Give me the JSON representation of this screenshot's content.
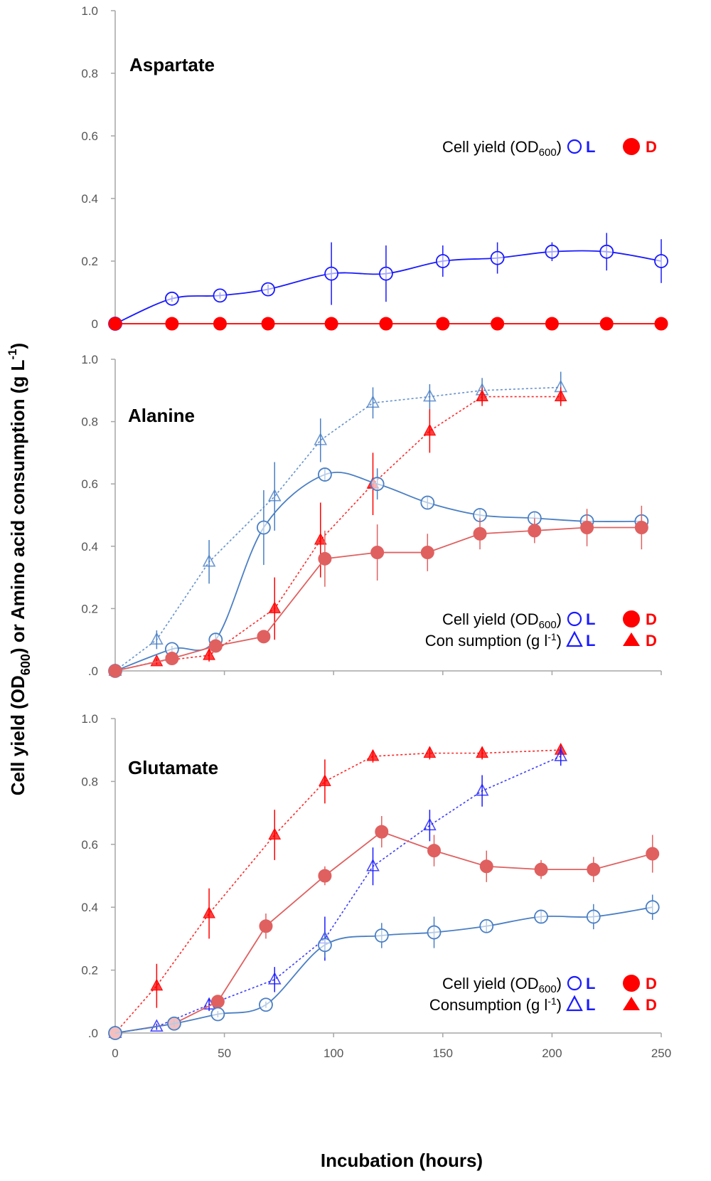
{
  "figure": {
    "ylabel_main": "Cell yield (OD",
    "ylabel_sub": "600",
    "ylabel_rest": ")  or  Amino acid consumption (g L",
    "ylabel_sup": "-1",
    "ylabel_end": ")",
    "xlabel": "Incubation (hours)",
    "xlim": [
      0,
      250
    ],
    "xticks": [
      "0",
      "50",
      "100",
      "150",
      "200",
      "250"
    ],
    "colors": {
      "L": "#1a1aff",
      "L_soft": "#4a7fc4",
      "D": "#ff0000",
      "D_soft": "#e06060"
    }
  },
  "chart_data": [
    {
      "type": "line",
      "title": "Aspartate",
      "ylim": [
        0,
        1.0
      ],
      "yticks": [
        "0",
        "0.2",
        "0.4",
        "0.6",
        "0.8",
        "1.0"
      ],
      "legend": {
        "position": "right",
        "rows": [
          {
            "text": "Cell yield (OD",
            "sub": "600",
            "end": ")",
            "key_L": "L",
            "key_D": "D",
            "marker": "circle"
          }
        ]
      },
      "series": [
        {
          "name": "Cell yield L",
          "marker": "circle-open",
          "color": "L",
          "smooth": true,
          "dash": false,
          "x": [
            0,
            26,
            48,
            70,
            99,
            124,
            150,
            175,
            200,
            225,
            250
          ],
          "y": [
            0.0,
            0.08,
            0.09,
            0.11,
            0.16,
            0.16,
            0.2,
            0.21,
            0.23,
            0.23,
            0.2
          ],
          "err": [
            0,
            0.01,
            0.01,
            0.015,
            0.1,
            0.09,
            0.05,
            0.05,
            0.03,
            0.06,
            0.07
          ]
        },
        {
          "name": "Cell yield D",
          "marker": "circle-filled",
          "color": "D",
          "smooth": false,
          "dash": false,
          "x": [
            0,
            26,
            48,
            70,
            99,
            124,
            150,
            175,
            200,
            225,
            250
          ],
          "y": [
            0,
            0,
            0,
            0,
            0,
            0,
            0,
            0,
            0,
            0,
            0
          ],
          "err": [
            0,
            0,
            0,
            0,
            0,
            0,
            0,
            0,
            0,
            0,
            0
          ]
        }
      ]
    },
    {
      "type": "line",
      "title": "Alanine",
      "ylim": [
        0,
        1.0
      ],
      "yticks": [
        ".0",
        "0.2",
        "0.4",
        "0.6",
        "0.8",
        "1.0"
      ],
      "legend": {
        "position": "bottom-right",
        "rows": [
          {
            "text": "Cell yield (OD",
            "sub": "600",
            "end": ")",
            "key_L": "L",
            "key_D": "D",
            "marker": "circle"
          },
          {
            "text": "Con sumption (g l",
            "sup": "-1",
            "end": ")",
            "key_L": "L",
            "key_D": "D",
            "marker": "triangle"
          }
        ]
      },
      "series": [
        {
          "name": "Consumption L",
          "marker": "triangle-open",
          "color": "L_soft",
          "smooth": false,
          "dash": true,
          "x": [
            0,
            19,
            43,
            73,
            94,
            118,
            144,
            168,
            204
          ],
          "y": [
            0.0,
            0.1,
            0.35,
            0.56,
            0.74,
            0.86,
            0.88,
            0.9,
            0.91
          ],
          "err": [
            0,
            0.03,
            0.07,
            0.11,
            0.07,
            0.05,
            0.04,
            0.04,
            0.05
          ]
        },
        {
          "name": "Consumption D",
          "marker": "triangle-filled",
          "color": "D",
          "smooth": false,
          "dash": true,
          "x": [
            0,
            19,
            43,
            73,
            94,
            118,
            144,
            168,
            204
          ],
          "y": [
            0.0,
            0.03,
            0.05,
            0.2,
            0.42,
            0.6,
            0.77,
            0.88,
            0.88
          ],
          "err": [
            0,
            0.01,
            0.02,
            0.1,
            0.12,
            0.1,
            0.07,
            0.03,
            0.03
          ]
        },
        {
          "name": "Cell yield L",
          "marker": "circle-open",
          "color": "L_soft",
          "smooth": true,
          "dash": false,
          "x": [
            0,
            26,
            46,
            68,
            96,
            120,
            143,
            167,
            192,
            216,
            241
          ],
          "y": [
            0.0,
            0.07,
            0.1,
            0.46,
            0.63,
            0.6,
            0.54,
            0.5,
            0.49,
            0.48,
            0.48
          ],
          "err": [
            0,
            0.01,
            0.02,
            0.12,
            0.02,
            0.05,
            0.02,
            0.02,
            0.02,
            0.02,
            0.02
          ]
        },
        {
          "name": "Cell yield D",
          "marker": "circle-filled",
          "color": "D_soft",
          "smooth": false,
          "dash": false,
          "x": [
            0,
            26,
            46,
            68,
            96,
            120,
            143,
            167,
            192,
            216,
            241
          ],
          "y": [
            0.0,
            0.04,
            0.08,
            0.11,
            0.36,
            0.38,
            0.38,
            0.44,
            0.45,
            0.46,
            0.46
          ],
          "err": [
            0,
            0.005,
            0.01,
            0.01,
            0.09,
            0.09,
            0.06,
            0.05,
            0.04,
            0.06,
            0.07
          ]
        }
      ]
    },
    {
      "type": "line",
      "title": "Glutamate",
      "ylim": [
        0,
        1.0
      ],
      "yticks": [
        ".0",
        "0.2",
        "0.4",
        "0.6",
        "0.8",
        "1.0"
      ],
      "legend": {
        "position": "bottom-right",
        "rows": [
          {
            "text": "Cell yield (OD",
            "sub": "600",
            "end": ")",
            "key_L": "L",
            "key_D": "D",
            "marker": "circle"
          },
          {
            "text": "Consumption (g l",
            "sup": "-1",
            "end": ")",
            "key_L": "L",
            "key_D": "D",
            "marker": "triangle"
          }
        ]
      },
      "series": [
        {
          "name": "Consumption D",
          "marker": "triangle-filled",
          "color": "D",
          "smooth": false,
          "dash": true,
          "x": [
            0,
            19,
            43,
            73,
            96,
            118,
            144,
            168,
            204
          ],
          "y": [
            0.0,
            0.15,
            0.38,
            0.63,
            0.8,
            0.88,
            0.89,
            0.89,
            0.9
          ],
          "err": [
            0,
            0.07,
            0.08,
            0.08,
            0.07,
            0.02,
            0.02,
            0.02,
            0.02
          ]
        },
        {
          "name": "Consumption L",
          "marker": "triangle-open",
          "color": "L",
          "smooth": false,
          "dash": true,
          "x": [
            0,
            19,
            43,
            73,
            96,
            118,
            144,
            168,
            204
          ],
          "y": [
            0.0,
            0.02,
            0.09,
            0.17,
            0.3,
            0.53,
            0.66,
            0.77,
            0.88
          ],
          "err": [
            0,
            0.01,
            0.02,
            0.04,
            0.07,
            0.06,
            0.05,
            0.05,
            0.03
          ]
        },
        {
          "name": "Cell yield D",
          "marker": "circle-filled",
          "color": "D_soft",
          "smooth": false,
          "dash": false,
          "x": [
            0,
            27,
            47,
            69,
            96,
            122,
            146,
            170,
            195,
            219,
            246
          ],
          "y": [
            0.0,
            0.03,
            0.1,
            0.34,
            0.5,
            0.64,
            0.58,
            0.53,
            0.52,
            0.52,
            0.57
          ],
          "err": [
            0,
            0.01,
            0.02,
            0.04,
            0.03,
            0.05,
            0.05,
            0.05,
            0.03,
            0.04,
            0.06
          ]
        },
        {
          "name": "Cell yield L",
          "marker": "circle-open",
          "color": "L_soft",
          "smooth": true,
          "dash": false,
          "x": [
            0,
            27,
            47,
            69,
            96,
            122,
            146,
            170,
            195,
            219,
            246
          ],
          "y": [
            0.0,
            0.03,
            0.06,
            0.09,
            0.28,
            0.31,
            0.32,
            0.34,
            0.37,
            0.37,
            0.4
          ],
          "err": [
            0,
            0.01,
            0.01,
            0.01,
            0.04,
            0.04,
            0.05,
            0.02,
            0.02,
            0.04,
            0.04
          ]
        }
      ]
    }
  ]
}
